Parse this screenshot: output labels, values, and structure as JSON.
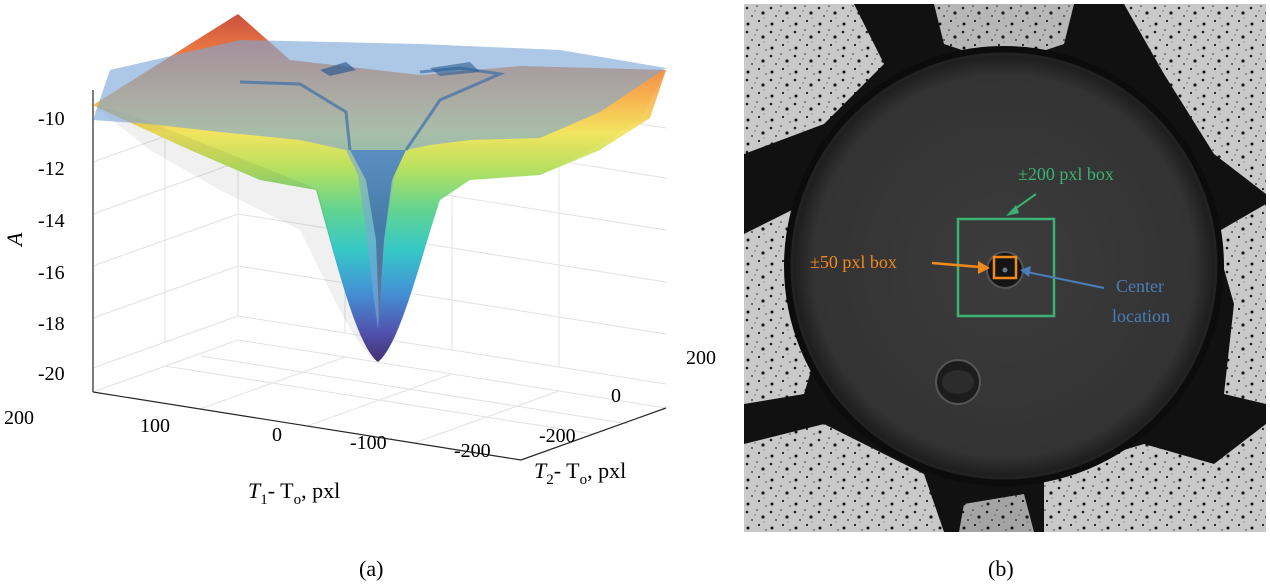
{
  "panel_a": {
    "label": "(a)",
    "chart_data": {
      "type": "surface",
      "zlabel": "A",
      "x1label": {
        "var": "T",
        "sub": "1",
        "rest": "- T",
        "sub2": "o",
        "unit": ", pxl"
      },
      "x2label": {
        "var": "T",
        "sub": "2",
        "rest": "- T",
        "sub2": "o",
        "unit": ", pxl"
      },
      "zticks": [
        "-10",
        "-12",
        "-14",
        "-16",
        "-18",
        "-20"
      ],
      "zlim": [
        -21,
        -9
      ],
      "x1ticks": [
        "200",
        "100",
        "0",
        "-100",
        "-200"
      ],
      "x2ticks": [
        "200",
        "0",
        "-200"
      ],
      "x1lim": [
        -200,
        200
      ],
      "x2lim": [
        -200,
        200
      ],
      "grid": true,
      "series": [
        {
          "surface": "coarse (rainbow colormap)",
          "min": -20,
          "corner_max": -9
        },
        {
          "surface": "fine (blue, transparent)",
          "plateau": -10,
          "min": -19
        }
      ],
      "colors": {
        "fine_surface": "#7BA7D6",
        "colormap_low": "#5B3C8A",
        "colormap_mid": "#2EC4C0",
        "colormap_high": "#E8553A"
      }
    }
  },
  "panel_b": {
    "label": "(b)",
    "annotations": {
      "box_200": "±200 pxl box",
      "box_50": "±50 pxl box",
      "center_line1": "Center",
      "center_line2": "location"
    },
    "colors": {
      "box_200": "#3BB273",
      "box_50": "#F08A1C",
      "center": "#4A7EB8"
    }
  }
}
